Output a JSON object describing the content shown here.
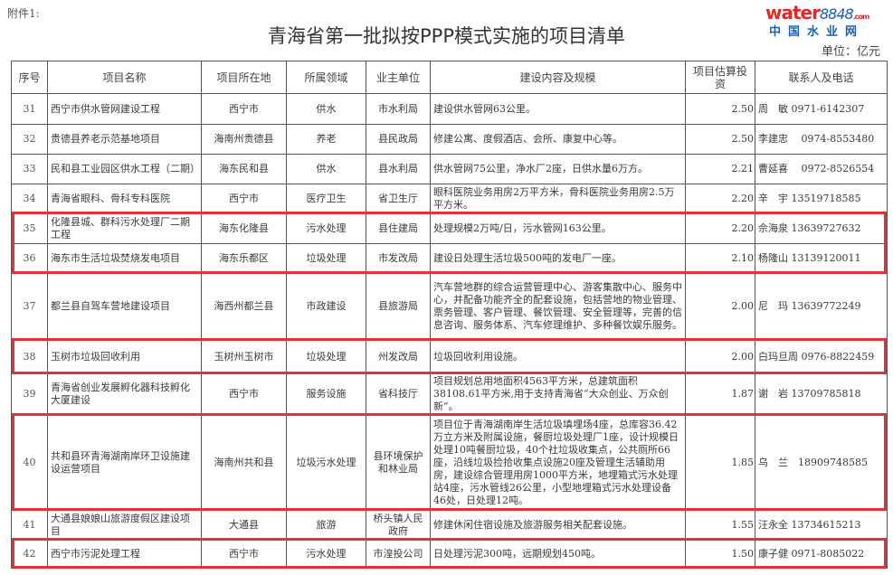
{
  "attachment_label": "附件1:",
  "title": "青海省第一批拟按PPP模式实施的项目清单",
  "unit": "单位：亿元",
  "headers": [
    "序号",
    "项目名称",
    "项目所在地",
    "所属领域",
    "业主单位",
    "建设内容及规模",
    "项目估算投资",
    "联系人及电话"
  ],
  "rows": [
    {
      "no": "31",
      "name": "西宁市供水管网建设工程",
      "location": "西宁市",
      "field": "供水",
      "owner": "市水利局",
      "content": "建设供水管网63公里。",
      "investment": "2.50",
      "contact": "周　敏 0971-6142307"
    },
    {
      "no": "32",
      "name": "贵德县养老示范基地项目",
      "location": "海南州贵德县",
      "field": "养老",
      "owner": "县民政局",
      "content": "修建公寓、度假酒店、会所、康复中心等。",
      "investment": "2.50",
      "contact": "李建忠　 0974-8553480"
    },
    {
      "no": "33",
      "name": "民和县工业园区供水工程（二期）",
      "location": "海东民和县",
      "field": "供水",
      "owner": "县水利局",
      "content": "供水管网75公里，净水厂2座，日供水量6万方。",
      "investment": "2.21",
      "contact": "曹延喜　 0972-8526554"
    },
    {
      "no": "34",
      "name": "青海省眼科、骨科专科医院",
      "location": "西宁市",
      "field": "医疗卫生",
      "owner": "省卫生厅",
      "content": "眼科医院业务用房2万平方米，骨科医院业务用房2.5万平方米。",
      "investment": "2.20",
      "contact": "辛　宇 13519718585"
    },
    {
      "no": "35",
      "name": "化隆县城、群科污水处理厂二期工程",
      "location": "海东化隆县",
      "field": "污水处理",
      "owner": "县住建局",
      "content": "处理规模2万吨/日，污水管网163公里。",
      "investment": "2.20",
      "contact": "佘海泉 13639727632"
    },
    {
      "no": "36",
      "name": "海东市生活垃圾焚烧发电项目",
      "location": "海东乐都区",
      "field": "垃圾处理",
      "owner": "市发改局",
      "content": "建设日处理生活垃圾500吨的发电厂一座。",
      "investment": "2.10",
      "contact": "杨隆山 13139120011"
    },
    {
      "no": "37",
      "name": "都兰县自驾车营地建设项目",
      "location": "海西州都兰县",
      "field": "市政建设",
      "owner": "县旅游局",
      "content": "汽车营地群的综合运营管理中心、游客集散中心、服务中心，并配备功能齐全的配套设施，包括营地的物业管理、票务管理、客户管理、餐饮管理、安全管理等，完善的信息咨询、服务体系、汽车修理维护、多种餐饮娱乐服务。",
      "investment": "2.00",
      "contact": "尼　玛 13639772249"
    },
    {
      "no": "38",
      "name": "玉树市垃圾回收利用",
      "location": "玉树州玉树市",
      "field": "垃圾处理",
      "owner": "州发改局",
      "content": "垃圾回收利用设施。",
      "investment": "2.00",
      "contact": "白玛旦周 0976-8822459"
    },
    {
      "no": "39",
      "name": "青海省创业发展孵化器科技孵化大厦建设",
      "location": "西宁市",
      "field": "服务设施",
      "owner": "省科技厅",
      "content": "项目规划总用地面积4563平方米，总建筑面积38108.61平方米,用于支持青海省“大众创业、万众创新”。",
      "investment": "1.87",
      "contact": "谢　岩 13709785818"
    },
    {
      "no": "40",
      "name": "共和县环青海湖南岸环卫设施建设运营项目",
      "location": "海南州共和县",
      "field": "垃圾污水处理",
      "owner": "县环境保护和林业局",
      "content": "项目位于青海湖南岸生活垃圾填埋场4座，总库容36.42万立方米及附属设施，餐厨垃圾处理厂1座，设计规模日处理10吨餐厨垃圾，40个社垃圾收集点，公共厕所66座，沿线垃圾捡拾收集点设施20座及管理生活辅助用房，建设综合管理用房1000平方米，地埋箱式污水处理站4座，污水管线26公里，小型地埋箱式污水处理设备46处，日处理12吨。",
      "investment": "1.85",
      "contact": "乌　兰　18909748585"
    },
    {
      "no": "41",
      "name": "大通县娘娘山旅游度假区建设项目",
      "location": "大通县",
      "field": "旅游",
      "owner": "桥头镇人民政府",
      "content": "修建休闲住宿设施及旅游服务相关配套设施。",
      "investment": "1.55",
      "contact": "汪永全 13734615213"
    },
    {
      "no": "42",
      "name": "西宁市污泥处理工程",
      "location": "西宁市",
      "field": "污水处理",
      "owner": "市湟投公司",
      "content": "日处理污泥300吨，远期规划450吨。",
      "investment": "1.50",
      "contact": "康子健 0971-8085022"
    }
  ],
  "highlight_color": "#e0323a",
  "watermark": {
    "brand": "water",
    "number": "8848",
    "suffix": ".com",
    "cn": "中国水业网"
  }
}
